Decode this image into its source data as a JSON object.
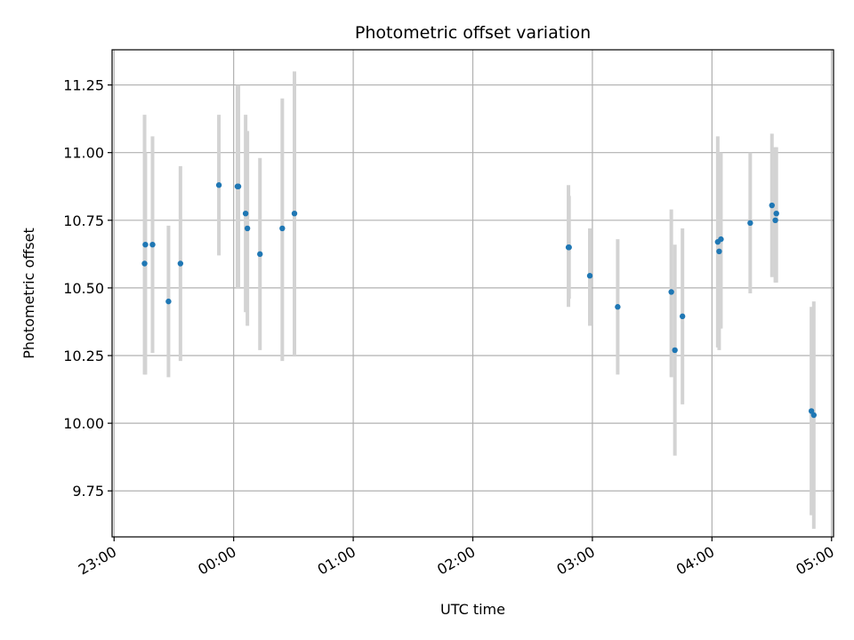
{
  "chart_data": {
    "type": "scatter",
    "title": "Photometric offset variation",
    "xlabel": "UTC time",
    "ylabel": "Photometric offset",
    "grid": true,
    "x_unit": "minutes since 23:00 UTC",
    "xlim": [
      -1,
      361
    ],
    "ylim": [
      9.58,
      11.38
    ],
    "x_ticks": [
      {
        "value": 0,
        "label": "23:00"
      },
      {
        "value": 60,
        "label": "00:00"
      },
      {
        "value": 120,
        "label": "01:00"
      },
      {
        "value": 180,
        "label": "02:00"
      },
      {
        "value": 240,
        "label": "03:00"
      },
      {
        "value": 300,
        "label": "04:00"
      },
      {
        "value": 360,
        "label": "05:00"
      }
    ],
    "y_ticks": [
      {
        "value": 9.75,
        "label": "9.75"
      },
      {
        "value": 10.0,
        "label": "10.00"
      },
      {
        "value": 10.25,
        "label": "10.25"
      },
      {
        "value": 10.5,
        "label": "10.50"
      },
      {
        "value": 10.75,
        "label": "10.75"
      },
      {
        "value": 11.0,
        "label": "11.00"
      },
      {
        "value": 11.25,
        "label": "11.25"
      }
    ],
    "point_color": "#1f77b4",
    "errorbar_color": "#d3d3d3",
    "points": [
      {
        "x": 15.3,
        "y": 10.59,
        "err_low": 10.18,
        "err_high": 11.14
      },
      {
        "x": 15.7,
        "y": 10.66,
        "err_low": 10.18,
        "err_high": 11.0
      },
      {
        "x": 19.3,
        "y": 10.66,
        "err_low": 10.26,
        "err_high": 11.06
      },
      {
        "x": 27.3,
        "y": 10.45,
        "err_low": 10.17,
        "err_high": 10.73
      },
      {
        "x": 33.3,
        "y": 10.59,
        "err_low": 10.23,
        "err_high": 10.95
      },
      {
        "x": 52.6,
        "y": 10.88,
        "err_low": 10.62,
        "err_high": 11.14
      },
      {
        "x": 61.9,
        "y": 10.875,
        "err_low": 10.5,
        "err_high": 11.25
      },
      {
        "x": 62.4,
        "y": 10.875,
        "err_low": 10.5,
        "err_high": 11.25
      },
      {
        "x": 66.0,
        "y": 10.775,
        "err_low": 10.41,
        "err_high": 11.14
      },
      {
        "x": 66.9,
        "y": 10.72,
        "err_low": 10.36,
        "err_high": 11.08
      },
      {
        "x": 73.2,
        "y": 10.625,
        "err_low": 10.27,
        "err_high": 10.98
      },
      {
        "x": 84.4,
        "y": 10.72,
        "err_low": 10.23,
        "err_high": 11.2
      },
      {
        "x": 90.5,
        "y": 10.775,
        "err_low": 10.25,
        "err_high": 11.3
      },
      {
        "x": 228.0,
        "y": 10.65,
        "err_low": 10.43,
        "err_high": 10.88
      },
      {
        "x": 228.3,
        "y": 10.65,
        "err_low": 10.46,
        "err_high": 10.84
      },
      {
        "x": 238.7,
        "y": 10.545,
        "err_low": 10.36,
        "err_high": 10.72
      },
      {
        "x": 252.7,
        "y": 10.43,
        "err_low": 10.18,
        "err_high": 10.68
      },
      {
        "x": 279.6,
        "y": 10.485,
        "err_low": 10.17,
        "err_high": 10.79
      },
      {
        "x": 281.4,
        "y": 10.27,
        "err_low": 9.88,
        "err_high": 10.66
      },
      {
        "x": 285.2,
        "y": 10.395,
        "err_low": 10.07,
        "err_high": 10.72
      },
      {
        "x": 302.9,
        "y": 10.67,
        "err_low": 10.28,
        "err_high": 11.06
      },
      {
        "x": 303.6,
        "y": 10.635,
        "err_low": 10.27,
        "err_high": 11.0
      },
      {
        "x": 304.5,
        "y": 10.68,
        "err_low": 10.35,
        "err_high": 11.0
      },
      {
        "x": 319.2,
        "y": 10.74,
        "err_low": 10.48,
        "err_high": 11.0
      },
      {
        "x": 330.1,
        "y": 10.805,
        "err_low": 10.54,
        "err_high": 11.07
      },
      {
        "x": 331.8,
        "y": 10.75,
        "err_low": 10.52,
        "err_high": 11.02
      },
      {
        "x": 332.3,
        "y": 10.775,
        "err_low": 10.52,
        "err_high": 11.02
      },
      {
        "x": 349.9,
        "y": 10.045,
        "err_low": 9.66,
        "err_high": 10.43
      },
      {
        "x": 351.1,
        "y": 10.03,
        "err_low": 9.61,
        "err_high": 10.45
      }
    ]
  }
}
